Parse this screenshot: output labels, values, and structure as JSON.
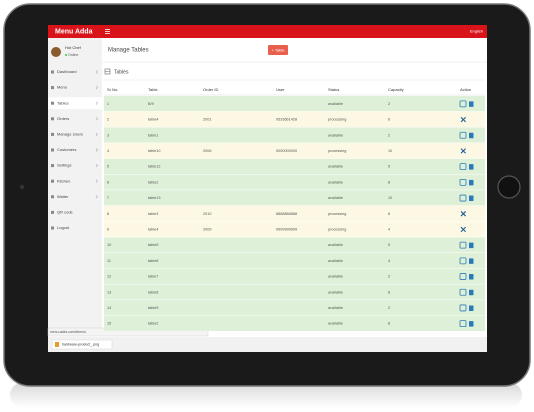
{
  "header": {
    "brand": "Menu Adda",
    "language": "English"
  },
  "user": {
    "name": "Hot Chef",
    "status": "Online"
  },
  "sidebar": {
    "items": [
      "Dashboard",
      "Menu",
      "Tables",
      "Orders",
      "Manage Users",
      "Customers",
      "Settings",
      "Kitchen",
      "Waiter",
      "QR code",
      "Logout"
    ],
    "active": 2
  },
  "page": {
    "title": "Manage Tables",
    "button": "+ Table",
    "panel_title": "Tables"
  },
  "table": {
    "columns": [
      "Sr No.",
      "Table",
      "Order ID",
      "User",
      "Status",
      "Capacity",
      "Action"
    ],
    "row_colors": [
      "#dff0d8",
      "#fcf8e3"
    ],
    "rows": [
      [
        "1",
        "B/9",
        null,
        null,
        "available",
        "2"
      ],
      [
        "2",
        "table4",
        "2001",
        "9533661428",
        "processing",
        "6"
      ],
      [
        "3",
        "table1",
        null,
        null,
        "available",
        "2"
      ],
      [
        "4",
        "table10",
        "2006",
        "0000000000",
        "processing",
        "10"
      ],
      [
        "5",
        "table12",
        null,
        null,
        "available",
        "5"
      ],
      [
        "6",
        "table2",
        null,
        null,
        "available",
        "8"
      ],
      [
        "7",
        "table13",
        null,
        null,
        "available",
        "10"
      ],
      [
        "8",
        "table3",
        "2010",
        "8888888888",
        "processing",
        "6"
      ],
      [
        "9",
        "table4",
        "2009",
        "9999999999",
        "processing",
        "4"
      ],
      [
        "10",
        "table5",
        null,
        null,
        "available",
        "5"
      ],
      [
        "11",
        "table6",
        null,
        null,
        "available",
        "4"
      ],
      [
        "12",
        "table7",
        null,
        null,
        "available",
        "2"
      ],
      [
        "13",
        "table8",
        null,
        null,
        "available",
        "8"
      ],
      [
        "14",
        "table9",
        null,
        null,
        "available",
        "2"
      ],
      [
        "15",
        "table2",
        null,
        null,
        "available",
        "8"
      ]
    ]
  },
  "browser": {
    "status_url": "menu-adda.com/#menu",
    "download": "hardware-product_.png"
  }
}
